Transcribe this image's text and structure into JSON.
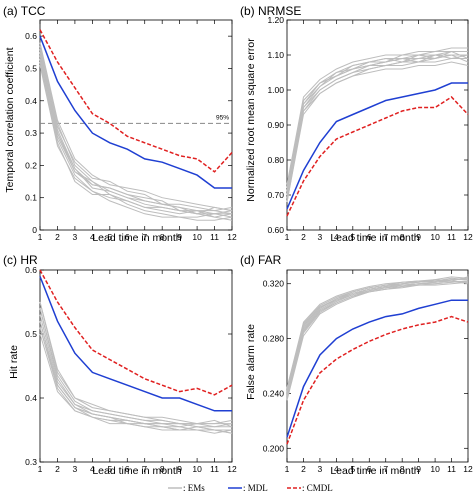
{
  "colors": {
    "ems": "#bdbdbd",
    "mdl": "#1f3fd2",
    "cmdl": "#e02020",
    "threshold": "#888888"
  },
  "legend": [
    {
      "key": "ems",
      "label": ": EMs"
    },
    {
      "key": "mdl",
      "label": ": MDL"
    },
    {
      "key": "cmdl",
      "label": ": CMDL"
    }
  ],
  "chart_data": [
    {
      "type": "line",
      "title": "(a) TCC",
      "xlabel": "Lead time in month",
      "ylabel": "Temporal correlation coefficient",
      "x": [
        1,
        2,
        3,
        4,
        5,
        6,
        7,
        8,
        9,
        10,
        11,
        12
      ],
      "xlim": [
        1,
        12
      ],
      "ylim": [
        0,
        0.65
      ],
      "yticks": [
        0,
        0.1,
        0.2,
        0.3,
        0.4,
        0.5,
        0.6
      ],
      "ytick_labels": [
        "0",
        "0.1",
        "0.2",
        "0.3",
        "0.4",
        "0.5",
        "0.6"
      ],
      "threshold": {
        "value": 0.33,
        "label": "95%"
      },
      "series": [
        {
          "name": "CMDL",
          "key": "cmdl",
          "values": [
            0.62,
            0.52,
            0.44,
            0.36,
            0.33,
            0.29,
            0.27,
            0.25,
            0.23,
            0.22,
            0.18,
            0.24
          ]
        },
        {
          "name": "MDL",
          "key": "mdl",
          "values": [
            0.6,
            0.46,
            0.37,
            0.3,
            0.27,
            0.25,
            0.22,
            0.21,
            0.19,
            0.17,
            0.13,
            0.13
          ]
        }
      ],
      "ems": [
        [
          0.57,
          0.33,
          0.2,
          0.15,
          0.12,
          0.1,
          0.09,
          0.08,
          0.07,
          0.06,
          0.06,
          0.07
        ],
        [
          0.55,
          0.3,
          0.18,
          0.14,
          0.13,
          0.11,
          0.1,
          0.09,
          0.06,
          0.05,
          0.05,
          0.06
        ],
        [
          0.53,
          0.28,
          0.17,
          0.12,
          0.1,
          0.09,
          0.07,
          0.06,
          0.05,
          0.06,
          0.04,
          0.05
        ],
        [
          0.56,
          0.32,
          0.21,
          0.16,
          0.15,
          0.12,
          0.11,
          0.08,
          0.08,
          0.07,
          0.06,
          0.05
        ],
        [
          0.52,
          0.27,
          0.15,
          0.11,
          0.11,
          0.08,
          0.06,
          0.05,
          0.04,
          0.04,
          0.05,
          0.04
        ],
        [
          0.54,
          0.3,
          0.19,
          0.13,
          0.12,
          0.1,
          0.08,
          0.07,
          0.06,
          0.05,
          0.07,
          0.06
        ],
        [
          0.58,
          0.34,
          0.22,
          0.17,
          0.14,
          0.13,
          0.12,
          0.1,
          0.09,
          0.08,
          0.07,
          0.06
        ],
        [
          0.51,
          0.26,
          0.16,
          0.12,
          0.09,
          0.07,
          0.05,
          0.04,
          0.04,
          0.03,
          0.03,
          0.04
        ],
        [
          0.55,
          0.31,
          0.19,
          0.14,
          0.13,
          0.11,
          0.09,
          0.08,
          0.07,
          0.05,
          0.04,
          0.03
        ],
        [
          0.53,
          0.29,
          0.18,
          0.15,
          0.11,
          0.09,
          0.07,
          0.07,
          0.06,
          0.06,
          0.05,
          0.05
        ]
      ]
    },
    {
      "type": "line",
      "title": "(b) NRMSE",
      "xlabel": "Lead time in month",
      "ylabel": "Normalized root mean square error",
      "x": [
        1,
        2,
        3,
        4,
        5,
        6,
        7,
        8,
        9,
        10,
        11,
        12
      ],
      "xlim": [
        1,
        12
      ],
      "ylim": [
        0.6,
        1.2
      ],
      "yticks": [
        0.6,
        0.7,
        0.8,
        0.9,
        1.0,
        1.1,
        1.2
      ],
      "ytick_labels": [
        "0.60",
        "0.70",
        "0.80",
        "0.90",
        "1.00",
        "1.10",
        "1.20"
      ],
      "series": [
        {
          "name": "CMDL",
          "key": "cmdl",
          "values": [
            0.64,
            0.74,
            0.81,
            0.86,
            0.88,
            0.9,
            0.92,
            0.94,
            0.95,
            0.95,
            0.98,
            0.93
          ]
        },
        {
          "name": "MDL",
          "key": "mdl",
          "values": [
            0.66,
            0.77,
            0.85,
            0.91,
            0.93,
            0.95,
            0.97,
            0.98,
            0.99,
            1.0,
            1.02,
            1.02
          ]
        }
      ],
      "ems": [
        [
          0.7,
          0.95,
          1.0,
          1.03,
          1.05,
          1.06,
          1.07,
          1.07,
          1.08,
          1.08,
          1.09,
          1.09
        ],
        [
          0.72,
          0.97,
          1.02,
          1.04,
          1.06,
          1.07,
          1.08,
          1.09,
          1.09,
          1.1,
          1.1,
          1.1
        ],
        [
          0.68,
          0.93,
          0.99,
          1.02,
          1.04,
          1.05,
          1.06,
          1.06,
          1.07,
          1.07,
          1.08,
          1.07
        ],
        [
          0.71,
          0.96,
          1.01,
          1.05,
          1.07,
          1.08,
          1.08,
          1.1,
          1.1,
          1.11,
          1.11,
          1.11
        ],
        [
          0.69,
          0.94,
          1.0,
          1.03,
          1.05,
          1.07,
          1.07,
          1.08,
          1.09,
          1.09,
          1.1,
          1.08
        ],
        [
          0.73,
          0.98,
          1.03,
          1.06,
          1.08,
          1.09,
          1.1,
          1.1,
          1.11,
          1.11,
          1.12,
          1.12
        ],
        [
          0.7,
          0.95,
          1.01,
          1.04,
          1.06,
          1.07,
          1.08,
          1.09,
          1.08,
          1.1,
          1.09,
          1.1
        ],
        [
          0.72,
          0.96,
          1.02,
          1.05,
          1.06,
          1.08,
          1.09,
          1.09,
          1.1,
          1.09,
          1.11,
          1.09
        ],
        [
          0.68,
          0.94,
          0.99,
          1.02,
          1.04,
          1.06,
          1.07,
          1.08,
          1.08,
          1.09,
          1.1,
          1.1
        ],
        [
          0.71,
          0.97,
          1.02,
          1.04,
          1.07,
          1.08,
          1.09,
          1.08,
          1.1,
          1.1,
          1.11,
          1.11
        ]
      ]
    },
    {
      "type": "line",
      "title": "(c) HR",
      "xlabel": "Lead time in month",
      "ylabel": "Hit rate",
      "x": [
        1,
        2,
        3,
        4,
        5,
        6,
        7,
        8,
        9,
        10,
        11,
        12
      ],
      "xlim": [
        1,
        12
      ],
      "ylim": [
        0.3,
        0.6
      ],
      "yticks": [
        0.3,
        0.4,
        0.5,
        0.6
      ],
      "ytick_labels": [
        "0.3",
        "0.4",
        "0.5",
        "0.6"
      ],
      "series": [
        {
          "name": "CMDL",
          "key": "cmdl",
          "values": [
            0.6,
            0.55,
            0.51,
            0.475,
            0.46,
            0.445,
            0.43,
            0.42,
            0.41,
            0.415,
            0.405,
            0.42
          ]
        },
        {
          "name": "MDL",
          "key": "mdl",
          "values": [
            0.59,
            0.52,
            0.47,
            0.44,
            0.43,
            0.42,
            0.41,
            0.4,
            0.4,
            0.39,
            0.38,
            0.38
          ]
        }
      ],
      "ems": [
        [
          0.54,
          0.43,
          0.39,
          0.38,
          0.375,
          0.37,
          0.365,
          0.36,
          0.36,
          0.355,
          0.35,
          0.35
        ],
        [
          0.52,
          0.42,
          0.385,
          0.375,
          0.37,
          0.365,
          0.36,
          0.36,
          0.355,
          0.36,
          0.355,
          0.355
        ],
        [
          0.55,
          0.44,
          0.4,
          0.385,
          0.38,
          0.375,
          0.37,
          0.365,
          0.36,
          0.36,
          0.36,
          0.36
        ],
        [
          0.51,
          0.415,
          0.38,
          0.37,
          0.365,
          0.36,
          0.355,
          0.355,
          0.35,
          0.35,
          0.35,
          0.345
        ],
        [
          0.53,
          0.425,
          0.39,
          0.375,
          0.37,
          0.365,
          0.36,
          0.36,
          0.36,
          0.355,
          0.355,
          0.36
        ],
        [
          0.5,
          0.41,
          0.38,
          0.37,
          0.36,
          0.36,
          0.355,
          0.35,
          0.35,
          0.355,
          0.35,
          0.35
        ],
        [
          0.54,
          0.435,
          0.395,
          0.38,
          0.375,
          0.37,
          0.365,
          0.365,
          0.36,
          0.36,
          0.365,
          0.355
        ],
        [
          0.52,
          0.42,
          0.385,
          0.37,
          0.365,
          0.365,
          0.36,
          0.355,
          0.355,
          0.35,
          0.345,
          0.35
        ],
        [
          0.55,
          0.445,
          0.4,
          0.39,
          0.38,
          0.375,
          0.37,
          0.37,
          0.365,
          0.36,
          0.36,
          0.365
        ],
        [
          0.51,
          0.42,
          0.385,
          0.375,
          0.37,
          0.36,
          0.36,
          0.355,
          0.35,
          0.35,
          0.35,
          0.345
        ]
      ]
    },
    {
      "type": "line",
      "title": "(d) FAR",
      "xlabel": "Lead time in month",
      "ylabel": "False alarm rate",
      "x": [
        1,
        2,
        3,
        4,
        5,
        6,
        7,
        8,
        9,
        10,
        11,
        12
      ],
      "xlim": [
        1,
        12
      ],
      "ylim": [
        0.19,
        0.33
      ],
      "yticks": [
        0.2,
        0.24,
        0.28,
        0.32
      ],
      "ytick_labels": [
        "0.200",
        "0.240",
        "0.280",
        "0.320"
      ],
      "series": [
        {
          "name": "CMDL",
          "key": "cmdl",
          "values": [
            0.203,
            0.235,
            0.255,
            0.265,
            0.272,
            0.278,
            0.283,
            0.287,
            0.29,
            0.292,
            0.296,
            0.292
          ]
        },
        {
          "name": "MDL",
          "key": "mdl",
          "values": [
            0.208,
            0.245,
            0.268,
            0.28,
            0.287,
            0.292,
            0.296,
            0.298,
            0.302,
            0.305,
            0.308,
            0.308
          ]
        }
      ],
      "ems": [
        [
          0.238,
          0.285,
          0.3,
          0.307,
          0.312,
          0.315,
          0.317,
          0.318,
          0.32,
          0.32,
          0.321,
          0.322
        ],
        [
          0.242,
          0.29,
          0.303,
          0.309,
          0.313,
          0.316,
          0.318,
          0.32,
          0.321,
          0.322,
          0.323,
          0.323
        ],
        [
          0.235,
          0.282,
          0.298,
          0.305,
          0.31,
          0.314,
          0.316,
          0.317,
          0.319,
          0.319,
          0.32,
          0.321
        ],
        [
          0.244,
          0.292,
          0.305,
          0.311,
          0.315,
          0.318,
          0.32,
          0.321,
          0.322,
          0.323,
          0.325,
          0.324
        ],
        [
          0.237,
          0.286,
          0.3,
          0.306,
          0.311,
          0.315,
          0.317,
          0.319,
          0.32,
          0.321,
          0.322,
          0.32
        ],
        [
          0.24,
          0.288,
          0.302,
          0.309,
          0.314,
          0.317,
          0.319,
          0.32,
          0.321,
          0.323,
          0.322,
          0.325
        ],
        [
          0.236,
          0.284,
          0.299,
          0.306,
          0.311,
          0.314,
          0.316,
          0.318,
          0.319,
          0.32,
          0.321,
          0.322
        ],
        [
          0.243,
          0.291,
          0.304,
          0.31,
          0.314,
          0.317,
          0.319,
          0.321,
          0.322,
          0.322,
          0.324,
          0.323
        ],
        [
          0.239,
          0.287,
          0.301,
          0.308,
          0.312,
          0.316,
          0.318,
          0.319,
          0.32,
          0.321,
          0.323,
          0.324
        ],
        [
          0.241,
          0.289,
          0.303,
          0.308,
          0.313,
          0.316,
          0.318,
          0.32,
          0.322,
          0.321,
          0.322,
          0.321
        ]
      ]
    }
  ]
}
